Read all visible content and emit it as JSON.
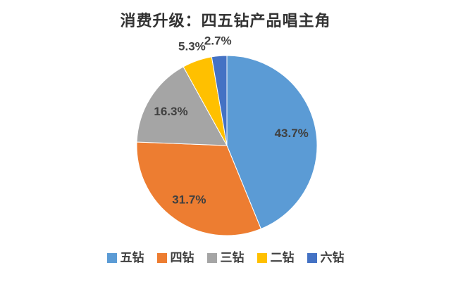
{
  "title": "消费升级：四五钻产品唱主角",
  "colors": {
    "background": "#ffffff",
    "title_text": "#333333",
    "label_text": "#404040"
  },
  "chart_data": {
    "type": "pie",
    "title": "消费升级：四五钻产品唱主角",
    "start_angle_deg": 0,
    "direction": "clockwise",
    "legend_position": "bottom",
    "slices": [
      {
        "label": "五钻",
        "value": 43.7,
        "display": "43.7%",
        "color": "#5B9BD5",
        "label_placement": "inside"
      },
      {
        "label": "四钻",
        "value": 31.7,
        "display": "31.7%",
        "color": "#ED7D31",
        "label_placement": "inside"
      },
      {
        "label": "三钻",
        "value": 16.3,
        "display": "16.3%",
        "color": "#A5A5A5",
        "label_placement": "inside"
      },
      {
        "label": "二钻",
        "value": 5.3,
        "display": "5.3%",
        "color": "#FFC000",
        "label_placement": "outside"
      },
      {
        "label": "六钻",
        "value": 2.7,
        "display": "2.7%",
        "color": "#4472C4",
        "label_placement": "outside"
      }
    ]
  }
}
